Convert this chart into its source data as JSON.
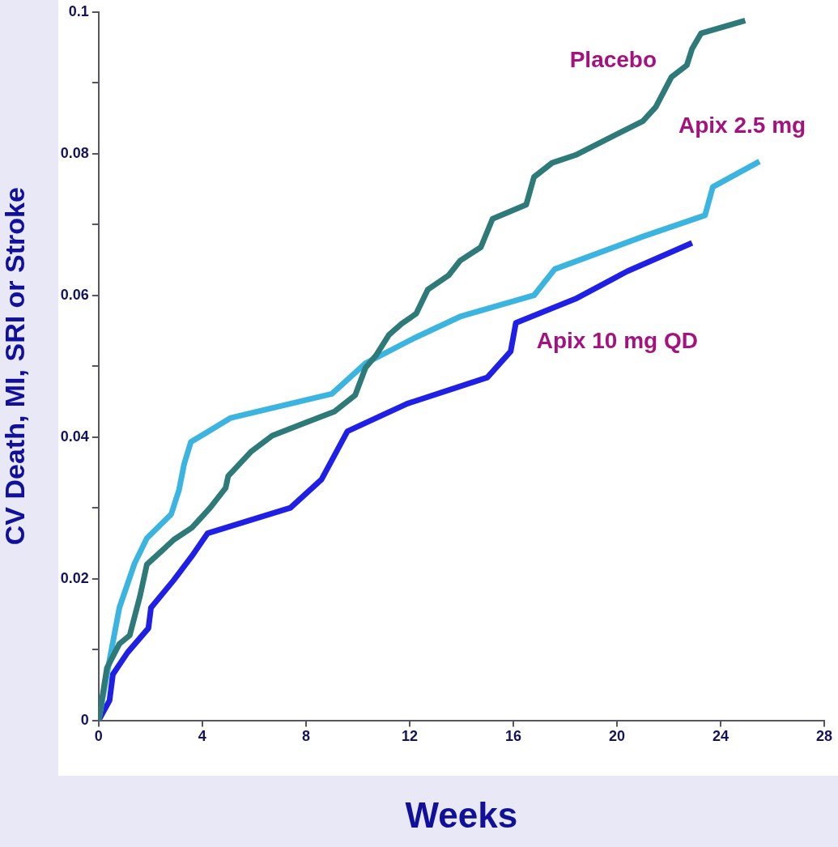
{
  "chart_data": {
    "type": "line",
    "xlabel": "Weeks",
    "ylabel": "CV Death, MI, SRI or Stroke",
    "xlim": [
      0,
      28
    ],
    "xticks": [
      0,
      4,
      8,
      12,
      16,
      20,
      24,
      28
    ],
    "ylim": [
      0,
      0.1
    ],
    "yticks": [
      0,
      {
        "value": 0.01,
        "label": null
      },
      0.02,
      {
        "value": 0.03,
        "label": null
      },
      0.04,
      {
        "value": 0.05,
        "label": null
      },
      0.06,
      {
        "value": 0.07,
        "label": null
      },
      0.08,
      {
        "value": 0.09,
        "label": null
      },
      0.1
    ],
    "grid": false,
    "legend": false,
    "marker": "none",
    "line_style": "solid",
    "series": [
      {
        "name": "Placebo",
        "color": "#2e7a78",
        "x": [
          0,
          0.32,
          0.8,
          1.2,
          1.6,
          1.86,
          2.4,
          2.9,
          3.6,
          4.3,
          4.9,
          5.0,
          5.9,
          6.7,
          7.9,
          9.1,
          9.9,
          10.3,
          10.7,
          11.2,
          11.7,
          12.25,
          12.7,
          13.5,
          13.95,
          14.75,
          15.2,
          16.5,
          16.8,
          17.5,
          18.4,
          21.0,
          21.5,
          22.1,
          22.7,
          22.9,
          23.25,
          24.95
        ],
        "values": [
          0,
          0.0074,
          0.0108,
          0.012,
          0.0176,
          0.022,
          0.0238,
          0.0255,
          0.0272,
          0.03,
          0.0328,
          0.0345,
          0.038,
          0.0402,
          0.0419,
          0.0436,
          0.0459,
          0.0498,
          0.0515,
          0.0544,
          0.056,
          0.0574,
          0.0608,
          0.0628,
          0.0649,
          0.0668,
          0.0708,
          0.0728,
          0.0767,
          0.0787,
          0.0798,
          0.0846,
          0.0866,
          0.0908,
          0.0925,
          0.0948,
          0.097,
          0.0988
        ]
      },
      {
        "name": "Apix 2.5 mg",
        "color": "#3bb4e0",
        "x": [
          0,
          0.42,
          0.8,
          1.38,
          1.86,
          2.8,
          3.1,
          3.3,
          3.56,
          5.1,
          9.0,
          10.3,
          12.2,
          13.95,
          16.8,
          17.6,
          21.0,
          23.4,
          23.7,
          25.5
        ],
        "values": [
          0,
          0.0085,
          0.0159,
          0.0221,
          0.0257,
          0.0291,
          0.0325,
          0.0362,
          0.0393,
          0.0427,
          0.0461,
          0.0504,
          0.054,
          0.057,
          0.06,
          0.0637,
          0.0683,
          0.0713,
          0.0753,
          0.0789
        ]
      },
      {
        "name": "Apix 10 mg QD",
        "color": "#1f1fe6",
        "x": [
          0,
          0.42,
          0.55,
          1.12,
          1.92,
          2.02,
          2.9,
          3.6,
          4.2,
          7.4,
          8.6,
          9.1,
          9.6,
          11.9,
          15.0,
          15.9,
          16.1,
          18.4,
          20.4,
          22.9
        ],
        "values": [
          0,
          0.0028,
          0.0065,
          0.0096,
          0.013,
          0.0159,
          0.0198,
          0.0232,
          0.0264,
          0.03,
          0.034,
          0.0374,
          0.0408,
          0.0447,
          0.0484,
          0.0521,
          0.0561,
          0.0595,
          0.0634,
          0.0674
        ]
      }
    ]
  }
}
